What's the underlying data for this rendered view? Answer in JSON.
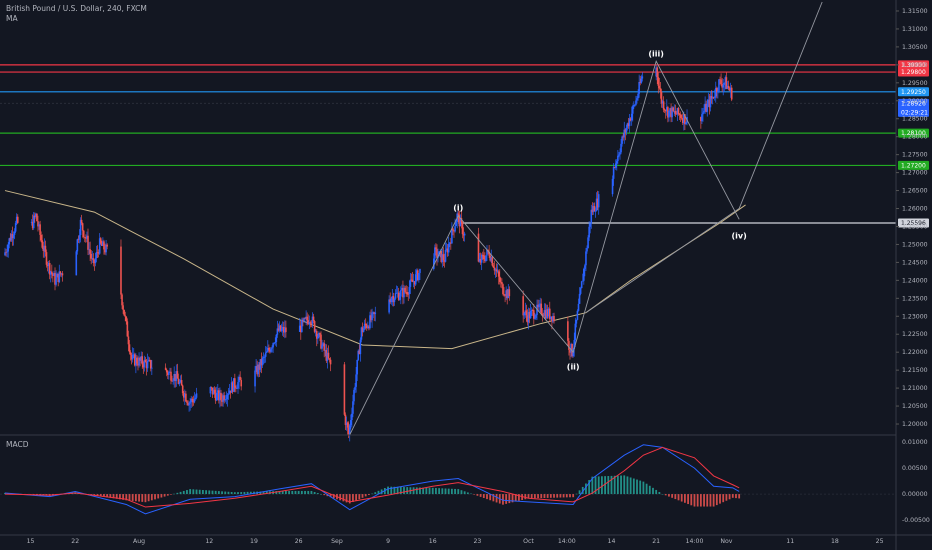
{
  "header": {
    "title": "British Pound / U.S. Dollar, 240, FXCM",
    "indicator": "MA"
  },
  "macd_panel": {
    "label": "MACD"
  },
  "chart_data": {
    "type": "candlestick",
    "y_axis_ticks": [
      "1.31500",
      "1.31000",
      "1.30500",
      "1.30000",
      "1.29500",
      "1.29000",
      "1.28500",
      "1.28000",
      "1.27500",
      "1.27000",
      "1.26500",
      "1.26000",
      "1.25500",
      "1.25000",
      "1.24500",
      "1.24000",
      "1.23500",
      "1.23000",
      "1.22500",
      "1.22000",
      "1.21500",
      "1.21000",
      "1.20500",
      "1.20000"
    ],
    "ylim": [
      1.1975,
      1.3175
    ],
    "x_axis_ticks": [
      "15",
      "22",
      "Aug",
      "12",
      "19",
      "26",
      "Sep",
      "9",
      "16",
      "23",
      "Oct",
      "14:00",
      "14",
      "21",
      "14:00",
      "Nov",
      "11",
      "18",
      "25"
    ],
    "horizontal_levels": [
      {
        "value": 1.3,
        "label": "1.30000",
        "color": "#f23645"
      },
      {
        "value": 1.298,
        "label": "1.29800",
        "color": "#f23645"
      },
      {
        "value": 1.2925,
        "label": "1.29250",
        "color": "#2196f3"
      },
      {
        "value": 1.281,
        "label": "1.28100",
        "color": "#22ab22"
      },
      {
        "value": 1.272,
        "label": "1.27200",
        "color": "#22ab22"
      },
      {
        "value": 1.25596,
        "label": "1.25596",
        "color": "#d1d4dc"
      }
    ],
    "current_price": {
      "value": 1.28926,
      "label": "1.28926",
      "countdown": "02:29:21",
      "color": "#2962ff"
    },
    "wave_labels": [
      {
        "text": "(i)",
        "x": "Sep 20",
        "y": 1.258
      },
      {
        "text": "(ii)",
        "x": "Oct 8",
        "y": 1.2185
      },
      {
        "text": "(iii)",
        "x": "Oct 21",
        "y": 1.301
      },
      {
        "text": "(iv)",
        "x": "Nov 3",
        "y": 1.255
      }
    ],
    "price_path": [
      [
        "Jul 11",
        1.247
      ],
      [
        "Jul 12",
        1.252
      ],
      [
        "Jul 13",
        1.256
      ],
      [
        "Jul 15",
        1.254
      ],
      [
        "Jul 16",
        1.258
      ],
      [
        "Jul 17",
        1.25
      ],
      [
        "Jul 18",
        1.244
      ],
      [
        "Jul 19",
        1.24
      ],
      [
        "Jul 22",
        1.246
      ],
      [
        "Jul 23",
        1.256
      ],
      [
        "Jul 24",
        1.251
      ],
      [
        "Jul 25",
        1.244
      ],
      [
        "Jul 26",
        1.25
      ],
      [
        "Jul 28",
        1.247
      ],
      [
        "Jul 29",
        1.24
      ],
      [
        "Jul 30",
        1.229
      ],
      [
        "Jul 31",
        1.218
      ],
      [
        "Aug 2",
        1.217
      ],
      [
        "Aug 5",
        1.215
      ],
      [
        "Aug 7",
        1.213
      ],
      [
        "Aug 9",
        1.206
      ],
      [
        "Aug 12",
        1.21
      ],
      [
        "Aug 14",
        1.207
      ],
      [
        "Aug 16",
        1.211
      ],
      [
        "Aug 19",
        1.213
      ],
      [
        "Aug 21",
        1.219
      ],
      [
        "Aug 23",
        1.226
      ],
      [
        "Aug 26",
        1.226
      ],
      [
        "Aug 28",
        1.23
      ],
      [
        "Aug 30",
        1.221
      ],
      [
        "Sep 1",
        1.213
      ],
      [
        "Sep 3",
        1.197
      ],
      [
        "Sep 5",
        1.226
      ],
      [
        "Sep 7",
        1.23
      ],
      [
        "Sep 9",
        1.235
      ],
      [
        "Sep 12",
        1.237
      ],
      [
        "Sep 14",
        1.242
      ],
      [
        "Sep 16",
        1.248
      ],
      [
        "Sep 18",
        1.246
      ],
      [
        "Sep 20",
        1.258
      ],
      [
        "Sep 23",
        1.244
      ],
      [
        "Sep 25",
        1.248
      ],
      [
        "Sep 27",
        1.238
      ],
      [
        "Sep 29",
        1.234
      ],
      [
        "Oct 1",
        1.23
      ],
      [
        "Oct 3",
        1.232
      ],
      [
        "Oct 5",
        1.23
      ],
      [
        "Oct 7",
        1.224
      ],
      [
        "Oct 8",
        1.22
      ],
      [
        "Oct 10",
        1.245
      ],
      [
        "Oct 11",
        1.259
      ],
      [
        "Oct 14",
        1.268
      ],
      [
        "Oct 16",
        1.28
      ],
      [
        "Oct 18",
        1.29
      ],
      [
        "Oct 19",
        1.297
      ],
      [
        "Oct 21",
        1.301
      ],
      [
        "Oct 22",
        1.29
      ],
      [
        "Oct 23",
        1.287
      ],
      [
        "Oct 25",
        1.286
      ],
      [
        "Oct 27",
        1.283
      ],
      [
        "Oct 29",
        1.288
      ],
      [
        "Oct 30",
        1.291
      ],
      [
        "Oct 31",
        1.295
      ],
      [
        "Nov 1",
        1.295
      ],
      [
        "Nov 2",
        1.292
      ],
      [
        "Nov 3",
        1.2893
      ]
    ],
    "moving_average": [
      [
        "Jul 11",
        1.265
      ],
      [
        "Jul 25",
        1.259
      ],
      [
        "Aug 8",
        1.246
      ],
      [
        "Aug 22",
        1.232
      ],
      [
        "Sep 5",
        1.222
      ],
      [
        "Sep 19",
        1.221
      ],
      [
        "Oct 3",
        1.228
      ],
      [
        "Oct 10",
        1.231
      ],
      [
        "Oct 17",
        1.24
      ],
      [
        "Oct 24",
        1.248
      ],
      [
        "Oct 31",
        1.256
      ],
      [
        "Nov 4",
        1.261
      ]
    ],
    "macd": {
      "ylim": [
        -0.0075,
        0.011
      ],
      "ticks": [
        "0.01000",
        "0.00500",
        "0.00000",
        "-0.00500"
      ],
      "macd_line_color": "#2962ff",
      "signal_line_color": "#f23645",
      "hist_pos_color": "#26a69a",
      "hist_neg_color": "#ef5350",
      "macd_line": [
        [
          "Jul 11",
          0.0002
        ],
        [
          "Jul 18",
          -0.0005
        ],
        [
          "Jul 22",
          0.0005
        ],
        [
          "Jul 30",
          -0.002
        ],
        [
          "Aug 2",
          -0.0038
        ],
        [
          "Aug 9",
          -0.001
        ],
        [
          "Aug 16",
          -0.0005
        ],
        [
          "Aug 23",
          0.001
        ],
        [
          "Aug 28",
          0.002
        ],
        [
          "Sep 3",
          -0.003
        ],
        [
          "Sep 9",
          0.001
        ],
        [
          "Sep 16",
          0.0025
        ],
        [
          "Sep 20",
          0.003
        ],
        [
          "Sep 27",
          -0.0012
        ],
        [
          "Oct 1",
          -0.0015
        ],
        [
          "Oct 8",
          -0.002
        ],
        [
          "Oct 11",
          0.003
        ],
        [
          "Oct 16",
          0.0075
        ],
        [
          "Oct 19",
          0.0095
        ],
        [
          "Oct 22",
          0.009
        ],
        [
          "Oct 27",
          0.005
        ],
        [
          "Oct 30",
          0.0015
        ],
        [
          "Nov 2",
          0.0012
        ],
        [
          "Nov 3",
          0.0005
        ]
      ],
      "signal_line": [
        [
          "Jul 11",
          0.0
        ],
        [
          "Jul 18",
          -0.0002
        ],
        [
          "Jul 22",
          0.0002
        ],
        [
          "Jul 30",
          -0.001
        ],
        [
          "Aug 2",
          -0.0025
        ],
        [
          "Aug 9",
          -0.0018
        ],
        [
          "Aug 16",
          -0.0008
        ],
        [
          "Aug 23",
          0.0005
        ],
        [
          "Aug 28",
          0.0015
        ],
        [
          "Sep 3",
          -0.0015
        ],
        [
          "Sep 9",
          -0.0002
        ],
        [
          "Sep 16",
          0.0015
        ],
        [
          "Sep 20",
          0.0022
        ],
        [
          "Sep 27",
          0.0005
        ],
        [
          "Oct 1",
          -0.0008
        ],
        [
          "Oct 8",
          -0.0015
        ],
        [
          "Oct 11",
          0.0002
        ],
        [
          "Oct 16",
          0.0045
        ],
        [
          "Oct 19",
          0.0075
        ],
        [
          "Oct 22",
          0.009
        ],
        [
          "Oct 27",
          0.007
        ],
        [
          "Oct 30",
          0.0035
        ],
        [
          "Nov 2",
          0.0018
        ],
        [
          "Nov 3",
          0.0012
        ]
      ]
    }
  }
}
